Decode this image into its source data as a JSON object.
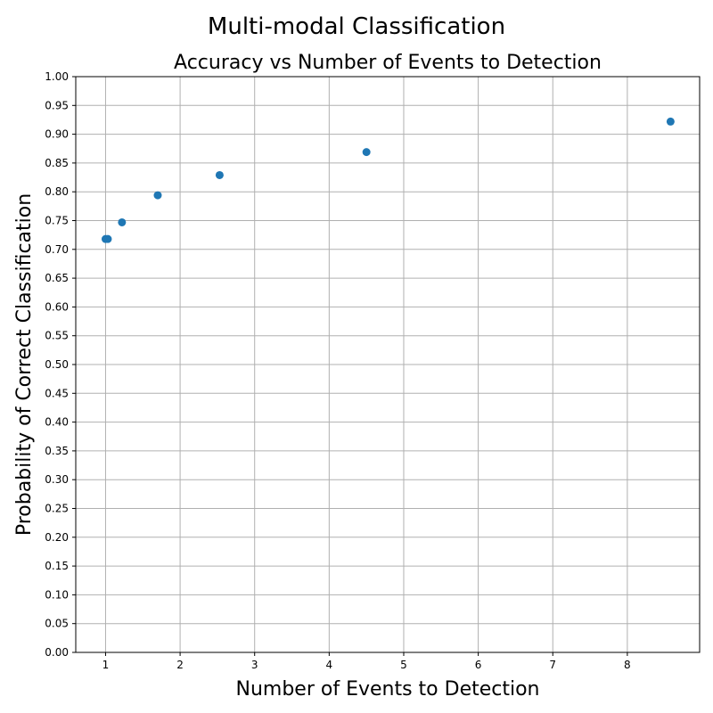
{
  "chart_data": {
    "type": "scatter",
    "suptitle": "Multi-modal Classification",
    "title": "Accuracy vs Number of Events to Detection",
    "xlabel": "Number of Events to Detection",
    "ylabel": "Probability of Correct Classification",
    "xlim": [
      0.6,
      8.97
    ],
    "ylim": [
      0.0,
      1.0
    ],
    "x_ticks": [
      "1",
      "2",
      "3",
      "4",
      "5",
      "6",
      "7",
      "8"
    ],
    "y_ticks": [
      "0.00",
      "0.05",
      "0.10",
      "0.15",
      "0.20",
      "0.25",
      "0.30",
      "0.35",
      "0.40",
      "0.45",
      "0.50",
      "0.55",
      "0.60",
      "0.65",
      "0.70",
      "0.75",
      "0.80",
      "0.85",
      "0.90",
      "0.95",
      "1.00"
    ],
    "grid": true,
    "color": "#1f77b4",
    "points": [
      {
        "x": 1.0,
        "y": 0.718
      },
      {
        "x": 1.03,
        "y": 0.718
      },
      {
        "x": 1.22,
        "y": 0.747
      },
      {
        "x": 1.7,
        "y": 0.794
      },
      {
        "x": 2.53,
        "y": 0.829
      },
      {
        "x": 4.5,
        "y": 0.869
      },
      {
        "x": 8.58,
        "y": 0.922
      }
    ]
  }
}
